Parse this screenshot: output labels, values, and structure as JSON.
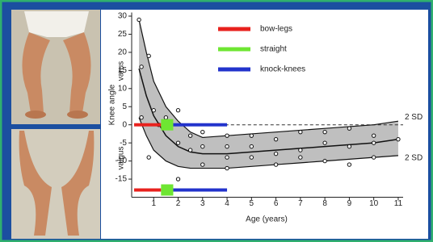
{
  "chart_data": {
    "type": "band",
    "y_label": "Knee angle",
    "y_label_upper": "varus",
    "y_label_lower": "valgus",
    "x_label": "Age (years)",
    "xlim": [
      0.1,
      11.2
    ],
    "ylim": [
      -20,
      31
    ],
    "xticks": [
      1,
      2,
      3,
      4,
      5,
      6,
      7,
      8,
      9,
      10,
      11
    ],
    "yticks": [
      30,
      25,
      20,
      15,
      10,
      5,
      0,
      -5,
      -10,
      -15
    ],
    "band": {
      "label": "2 SD",
      "x": [
        0.4,
        0.7,
        1,
        1.5,
        2,
        2.5,
        3,
        4,
        5,
        6,
        7,
        8,
        9,
        10,
        11
      ],
      "upper": [
        29,
        20,
        12,
        5,
        1,
        -2,
        -3.5,
        -3,
        -2.5,
        -2,
        -1.5,
        -1,
        -0.5,
        0,
        1
      ],
      "mean": [
        15.5,
        8,
        2.5,
        -3,
        -6,
        -7.5,
        -8,
        -8,
        -7.5,
        -7,
        -6.5,
        -6,
        -5.5,
        -5,
        -4
      ],
      "lower": [
        2,
        -3,
        -7,
        -10,
        -11.5,
        -12,
        -12,
        -12,
        -11.5,
        -11,
        -10.5,
        -10,
        -9.5,
        -9,
        -8.5
      ]
    },
    "points": {
      "x": [
        0.4,
        0.5,
        0.5,
        0.8,
        0.8,
        1,
        1.2,
        1.5,
        2,
        2,
        2,
        2.5,
        2.5,
        3,
        3,
        3,
        4,
        4,
        4,
        4,
        5,
        5,
        5,
        6,
        6,
        6,
        7,
        7,
        7,
        8,
        8,
        8,
        9,
        9,
        9,
        10,
        10,
        10,
        11
      ],
      "y": [
        29,
        16,
        2,
        19,
        -9,
        4,
        0,
        2,
        4,
        -5,
        -15,
        -3,
        -7,
        -6,
        -11,
        -2,
        -12,
        -9,
        -3,
        -6,
        -3,
        -6,
        -9,
        -4,
        -8,
        -11,
        -2,
        -7,
        -9,
        -2,
        -5,
        -10,
        -1,
        -6,
        -11,
        -3,
        -5,
        -9,
        -4
      ]
    },
    "bar_levels": [
      0,
      -18
    ],
    "series": [
      {
        "name": "bow-legs",
        "color": "#e8211d",
        "x_range": [
          0.2,
          1.3
        ]
      },
      {
        "name": "straight",
        "color": "#6ee632",
        "x_range": [
          1.3,
          1.8
        ]
      },
      {
        "name": "knock-knees",
        "color": "#2233cc",
        "x_range": [
          1.8,
          4
        ]
      }
    ]
  }
}
